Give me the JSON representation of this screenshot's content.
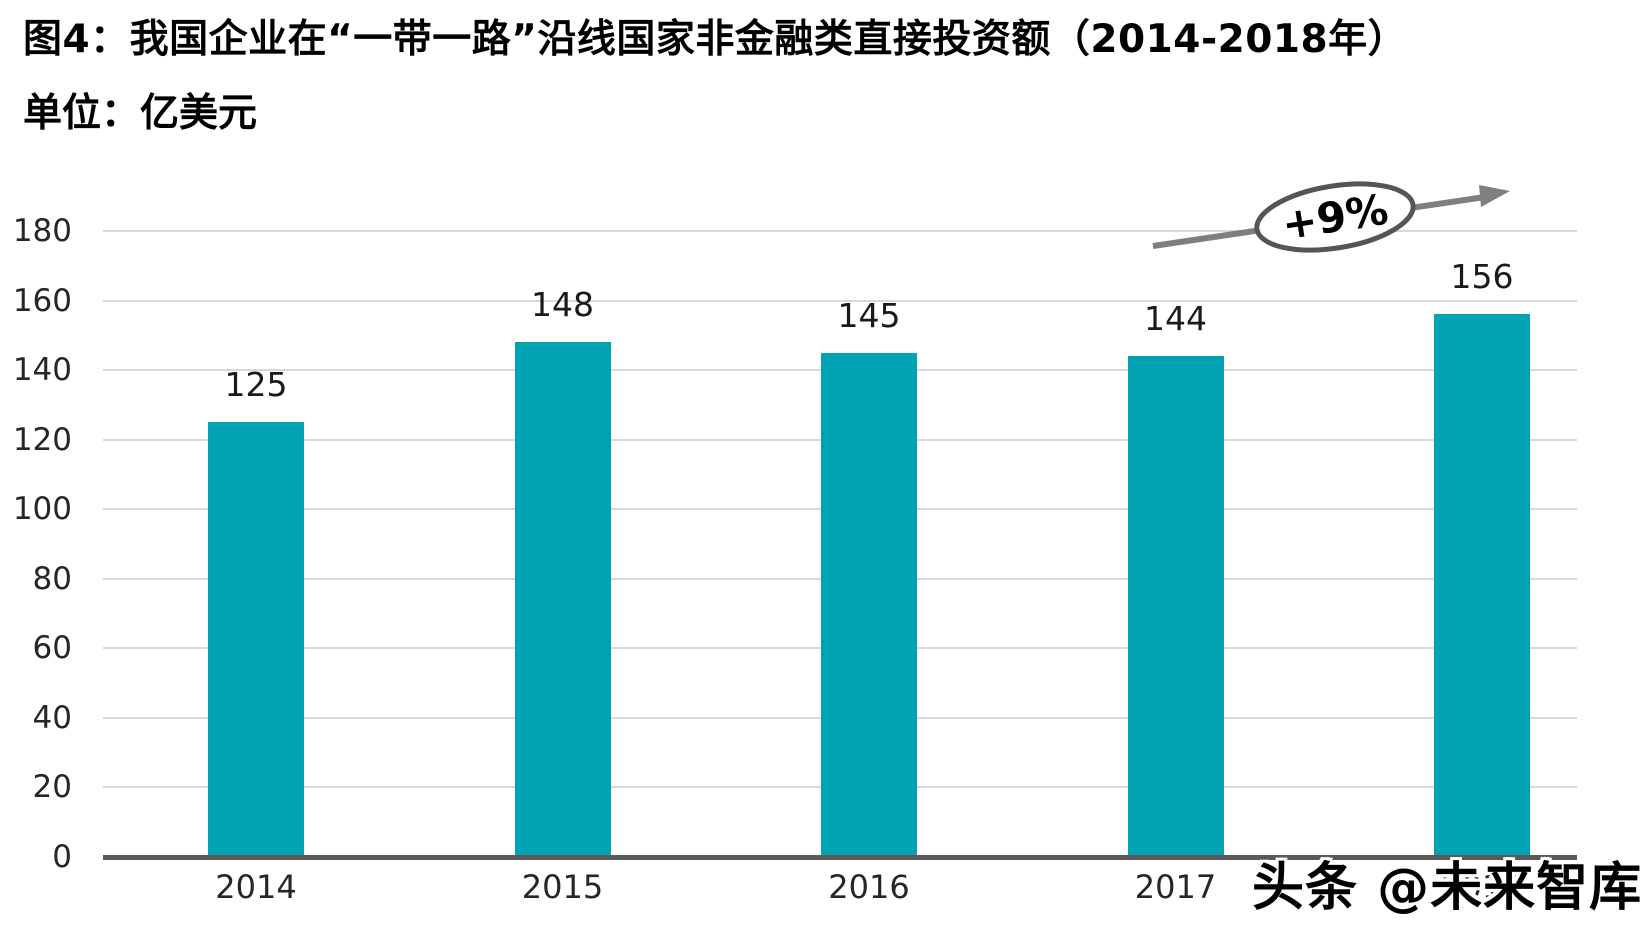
{
  "title": {
    "line1": "图4：我国企业在“一带一路”沿线国家非金融类直接投资额（2014-2018年）",
    "line2": "单位：亿美元"
  },
  "chart_data": {
    "type": "bar",
    "title": "图4：我国企业在“一带一路”沿线国家非金融类直接投资额（2014-2018年）",
    "unit_label": "单位：亿美元",
    "categories": [
      "2014",
      "2015",
      "2016",
      "2017",
      "2018"
    ],
    "values": [
      125,
      148,
      145,
      144,
      156
    ],
    "data_labels": [
      125,
      148,
      145,
      144,
      156
    ],
    "ylim": [
      0,
      190
    ],
    "yticks": [
      0,
      20,
      40,
      60,
      80,
      100,
      120,
      140,
      160,
      180
    ],
    "grid": true,
    "legend": "none",
    "annotation": {
      "text": "+9%"
    },
    "bar_color": "#00a2b4"
  },
  "watermark": {
    "text": "头条 @未来智库"
  },
  "colors": {
    "bar": "#00a2b4",
    "axis": "#595959",
    "gridline": "#d9d9d9",
    "arrow": "#7f7f7f",
    "ellipse_border": "#555555",
    "label_text": "#1a1a1a"
  }
}
